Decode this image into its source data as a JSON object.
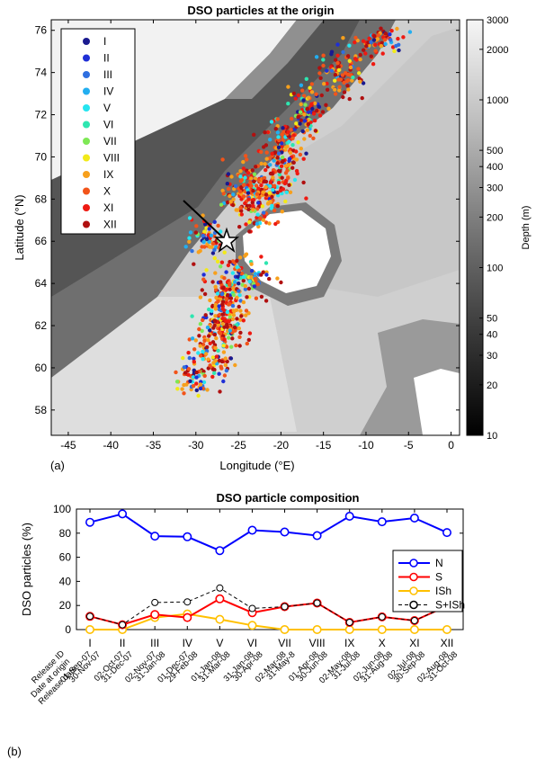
{
  "panel_a": {
    "title": "DSO particles at the origin",
    "label": "(a)",
    "xlabel": "Longitude (°E)",
    "ylabel": "Latitude (°N)",
    "xticks": [
      -45,
      -40,
      -35,
      -30,
      -25,
      -20,
      -15,
      -10,
      -5,
      0
    ],
    "yticks": [
      58,
      60,
      62,
      64,
      66,
      68,
      70,
      72,
      74,
      76
    ],
    "xlim": [
      -47,
      1
    ],
    "ylim": [
      56.8,
      76.5
    ],
    "colorbar": {
      "label": "Depth (m)",
      "ticks": [
        10,
        20,
        30,
        40,
        50,
        100,
        200,
        300,
        400,
        500,
        1000,
        2000,
        3000
      ],
      "scale": "log",
      "range": [
        10,
        3000
      ]
    },
    "legend": [
      {
        "label": "I",
        "color": "#1a1a8f"
      },
      {
        "label": "II",
        "color": "#1f2fd6"
      },
      {
        "label": "III",
        "color": "#2f6fe0"
      },
      {
        "label": "IV",
        "color": "#22aef0"
      },
      {
        "label": "V",
        "color": "#25e5f0"
      },
      {
        "label": "VI",
        "color": "#2ee6b0"
      },
      {
        "label": "VII",
        "color": "#7ee855"
      },
      {
        "label": "VIII",
        "color": "#f2ea19"
      },
      {
        "label": "IX",
        "color": "#f7a01c"
      },
      {
        "label": "X",
        "color": "#f2541a"
      },
      {
        "label": "XI",
        "color": "#ee1a12"
      },
      {
        "label": "XII",
        "color": "#b01010"
      }
    ],
    "sill_marker": {
      "lon": -25.5,
      "lat": 66
    }
  },
  "chart_data": {
    "type": "line",
    "title": "DSO particle composition",
    "panel_label": "(b)",
    "ylabel": "DSO particles (%)",
    "ylim": [
      0,
      100
    ],
    "yticks": [
      0,
      20,
      40,
      60,
      80,
      100
    ],
    "row_headers": [
      "Release ID",
      "Date at origin",
      "Release date"
    ],
    "categories": [
      "I",
      "II",
      "III",
      "IV",
      "V",
      "VI",
      "VII",
      "VIII",
      "IX",
      "X",
      "XI",
      "XII"
    ],
    "date_at_origin": [
      "01-Sep-07",
      "02-Oct-07",
      "02-Nov-07",
      "01-Dec-07",
      "01-Jan-08",
      "31-Jan-08",
      "02-Mar-08",
      "01-Apr-08",
      "02-May-08",
      "02-Jun-08",
      "02-Jul-08",
      "02-Aug-08"
    ],
    "release_date": [
      "30-Nov-07",
      "31-Dec-07",
      "31-Jan-08",
      "29-Feb-08",
      "31-Mar-08",
      "30-Apr-08",
      "31-May-8",
      "30-Jun-08",
      "31-Jul-08",
      "31-Aug-08",
      "30-Sep-08",
      "31-Oct-08"
    ],
    "series": [
      {
        "name": "N",
        "color": "#0000ff",
        "values": [
          89,
          96,
          77.5,
          77,
          65.5,
          82.5,
          81,
          78,
          94,
          89.5,
          92.5,
          80.5
        ]
      },
      {
        "name": "S",
        "color": "#ff0000",
        "values": [
          11,
          4,
          12.5,
          10,
          25.5,
          14,
          19,
          22,
          6,
          10.5,
          7.5,
          19.5
        ]
      },
      {
        "name": "ISh",
        "color": "#ffc000",
        "values": [
          0,
          0,
          10,
          13,
          8.5,
          3.5,
          0,
          0,
          0,
          0,
          0,
          0
        ]
      },
      {
        "name": "S+ISh",
        "color": "#000000",
        "dashed": true,
        "values": [
          11,
          4,
          22.5,
          23,
          34.5,
          17.5,
          19,
          22,
          6,
          10.5,
          7.5,
          19.5
        ]
      }
    ],
    "legend_position": "right"
  }
}
